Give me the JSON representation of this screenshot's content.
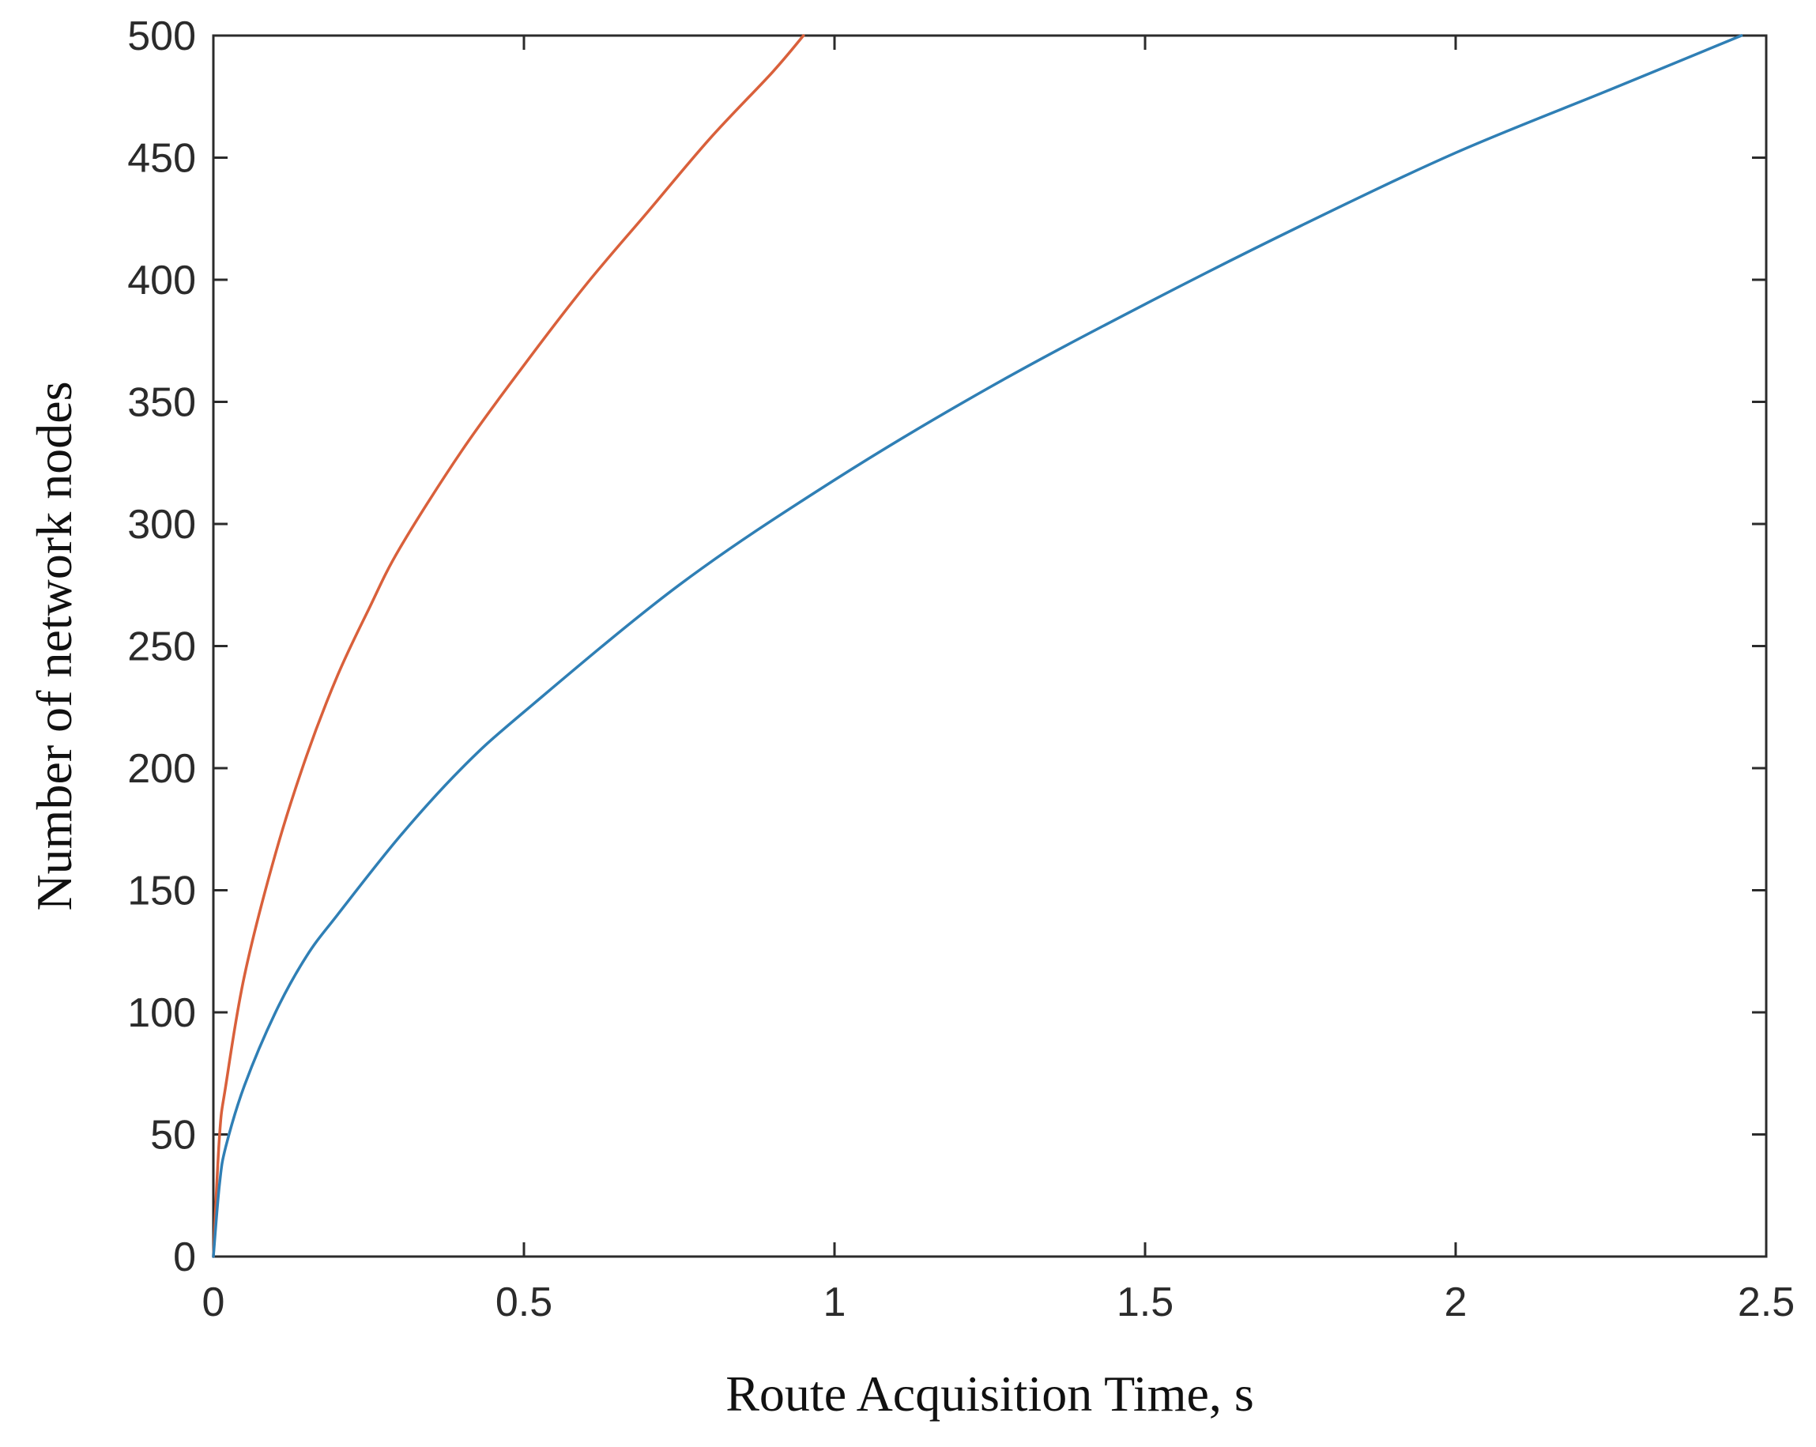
{
  "chart_data": {
    "type": "line",
    "title": "",
    "xlabel": "Route Acquisition Time, s",
    "ylabel": "Number of network nodes",
    "xlim": [
      0,
      2.5
    ],
    "ylim": [
      0,
      500
    ],
    "x_ticks": [
      0,
      0.5,
      1,
      1.5,
      2,
      2.5
    ],
    "x_tick_labels": [
      "0",
      "0.5",
      "1",
      "1.5",
      "2",
      "2.5"
    ],
    "y_ticks": [
      0,
      50,
      100,
      150,
      200,
      250,
      300,
      350,
      400,
      450,
      500
    ],
    "y_tick_labels": [
      "0",
      "50",
      "100",
      "150",
      "200",
      "250",
      "300",
      "350",
      "400",
      "450",
      "500"
    ],
    "grid": false,
    "legend": "none",
    "series": [
      {
        "color": "#d9603b",
        "x": [
          0,
          0.01,
          0.02,
          0.05,
          0.1,
          0.15,
          0.2,
          0.25,
          0.3,
          0.4,
          0.5,
          0.6,
          0.7,
          0.8,
          0.9,
          0.95
        ],
        "y": [
          0,
          50,
          70,
          115,
          165,
          205,
          238,
          265,
          290,
          330,
          365,
          398,
          428,
          458,
          485,
          500
        ]
      },
      {
        "color": "#2f7fb5",
        "x": [
          0,
          0.01,
          0.02,
          0.05,
          0.1,
          0.15,
          0.2,
          0.3,
          0.4,
          0.5,
          0.75,
          1,
          1.25,
          1.5,
          1.75,
          2,
          2.25,
          2.46
        ],
        "y": [
          0,
          30,
          45,
          70,
          100,
          123,
          140,
          172,
          200,
          223,
          275,
          318,
          356,
          390,
          422,
          452,
          478,
          500
        ]
      }
    ]
  }
}
